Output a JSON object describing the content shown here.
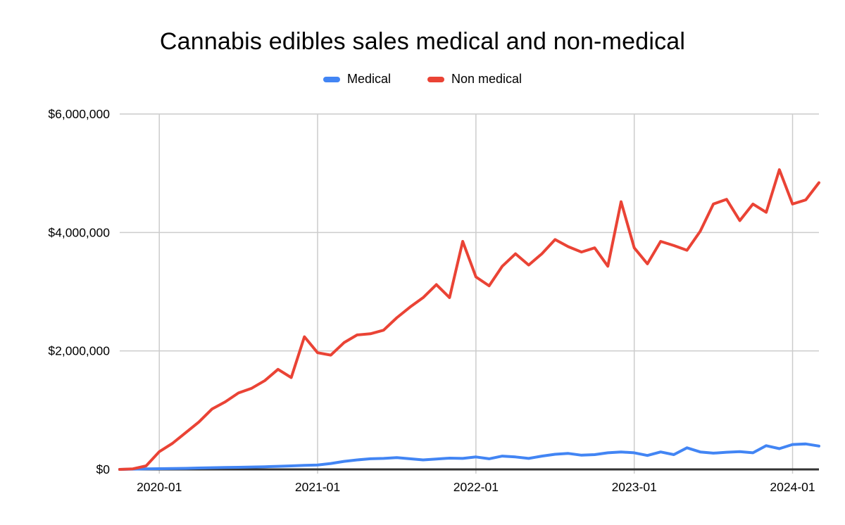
{
  "header": {
    "title": "Cannabis edibles sales medical and non-medical"
  },
  "legend": [
    {
      "label": "Medical",
      "color": "#4285F4"
    },
    {
      "label": "Non medical",
      "color": "#EA4335"
    }
  ],
  "chart_data": {
    "type": "line",
    "title": "Cannabis edibles sales medical and non-medical",
    "xlabel": "",
    "ylabel": "",
    "grid": "on",
    "legend_position": "top",
    "grid_color": "#cccccc",
    "axis_color": "#333333",
    "ylim": [
      0,
      6000000
    ],
    "y_ticks": [
      {
        "value": 0,
        "label": "$0"
      },
      {
        "value": 2000000,
        "label": "$2,000,000"
      },
      {
        "value": 4000000,
        "label": "$4,000,000"
      },
      {
        "value": 6000000,
        "label": "$6,000,000"
      }
    ],
    "x_ticks": [
      {
        "index": 3,
        "label": "2020-01"
      },
      {
        "index": 15,
        "label": "2021-01"
      },
      {
        "index": 27,
        "label": "2022-01"
      },
      {
        "index": 39,
        "label": "2023-01"
      },
      {
        "index": 51,
        "label": "2024-01"
      }
    ],
    "x": [
      "2019-10",
      "2019-11",
      "2019-12",
      "2020-01",
      "2020-02",
      "2020-03",
      "2020-04",
      "2020-05",
      "2020-06",
      "2020-07",
      "2020-08",
      "2020-09",
      "2020-10",
      "2020-11",
      "2020-12",
      "2021-01",
      "2021-02",
      "2021-03",
      "2021-04",
      "2021-05",
      "2021-06",
      "2021-07",
      "2021-08",
      "2021-09",
      "2021-10",
      "2021-11",
      "2021-12",
      "2022-01",
      "2022-02",
      "2022-03",
      "2022-04",
      "2022-05",
      "2022-06",
      "2022-07",
      "2022-08",
      "2022-09",
      "2022-10",
      "2022-11",
      "2022-12",
      "2023-01",
      "2023-02",
      "2023-03",
      "2023-04",
      "2023-05",
      "2023-06",
      "2023-07",
      "2023-08",
      "2023-09",
      "2023-10",
      "2023-11",
      "2023-12",
      "2024-01",
      "2024-02",
      "2024-03"
    ],
    "series": [
      {
        "name": "Medical",
        "color": "#4285F4",
        "values": [
          0,
          5000,
          10000,
          12000,
          15000,
          18000,
          24000,
          28000,
          32000,
          36000,
          40000,
          45000,
          52000,
          60000,
          68000,
          75000,
          100000,
          135000,
          160000,
          180000,
          185000,
          200000,
          180000,
          160000,
          175000,
          190000,
          185000,
          210000,
          180000,
          225000,
          210000,
          185000,
          225000,
          255000,
          270000,
          240000,
          250000,
          280000,
          295000,
          280000,
          235000,
          295000,
          250000,
          365000,
          295000,
          275000,
          290000,
          300000,
          280000,
          400000,
          350000,
          420000,
          430000,
          395000
        ]
      },
      {
        "name": "Non medical",
        "color": "#EA4335",
        "values": [
          0,
          10000,
          60000,
          300000,
          440000,
          620000,
          800000,
          1020000,
          1140000,
          1290000,
          1370000,
          1500000,
          1690000,
          1550000,
          2240000,
          1970000,
          1930000,
          2140000,
          2270000,
          2290000,
          2350000,
          2560000,
          2740000,
          2900000,
          3120000,
          2900000,
          3850000,
          3250000,
          3100000,
          3430000,
          3640000,
          3450000,
          3640000,
          3880000,
          3760000,
          3670000,
          3740000,
          3430000,
          4520000,
          3740000,
          3470000,
          3850000,
          3780000,
          3700000,
          4020000,
          4480000,
          4560000,
          4200000,
          4480000,
          4340000,
          5060000,
          4480000,
          4550000,
          4840000
        ]
      }
    ]
  }
}
